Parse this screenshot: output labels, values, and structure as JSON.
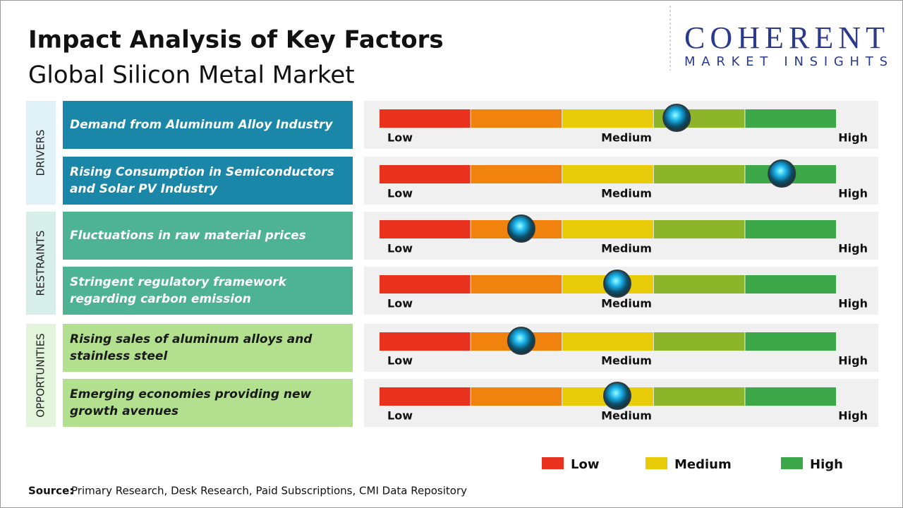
{
  "header": {
    "title": "Impact Analysis of Key Factors",
    "subtitle": "Global Silicon Metal Market"
  },
  "logo": {
    "name": "COHERENT",
    "tagline": "MARKET INSIGHTS"
  },
  "scale_labels": [
    "Low",
    "Medium",
    "High"
  ],
  "xlim": [
    0,
    5
  ],
  "segment_colors": [
    "#e8321e",
    "#f0830e",
    "#e8cc0a",
    "#8db52a",
    "#3da84a"
  ],
  "groups": [
    {
      "name": "DRIVERS",
      "color": "#1a87a8",
      "band": "#dff0f7",
      "text_color": "#ffffff",
      "factors": [
        {
          "label": "Demand from Aluminum Alloy Industry",
          "impact": 3.25
        },
        {
          "label": "Rising Consumption in Semiconductors and Solar PV Industry",
          "impact": 4.4
        }
      ]
    },
    {
      "name": "RESTRAINTS",
      "color": "#4db392",
      "band": "#d8efe9",
      "text_color": "#ffffff",
      "factors": [
        {
          "label": "Fluctuations in raw material prices",
          "impact": 1.55
        },
        {
          "label": "Stringent regulatory framework regarding carbon emission",
          "impact": 2.6
        }
      ]
    },
    {
      "name": "OPPORTUNITIES",
      "color": "#b2e08e",
      "band": "#e2f5dc",
      "text_color": "#1a1a1a",
      "factors": [
        {
          "label": "Rising sales of aluminum alloys and stainless steel",
          "impact": 1.55
        },
        {
          "label": "Emerging economies providing new growth avenues",
          "impact": 2.6
        }
      ]
    }
  ],
  "legend": [
    {
      "label": "Low",
      "color": "#e8321e"
    },
    {
      "label": "Medium",
      "color": "#e8cc0a"
    },
    {
      "label": "High",
      "color": "#3da84a"
    }
  ],
  "source": {
    "label": "Source:",
    "text": "Primary Research, Desk Research, Paid Subscriptions, CMI Data Repository"
  }
}
